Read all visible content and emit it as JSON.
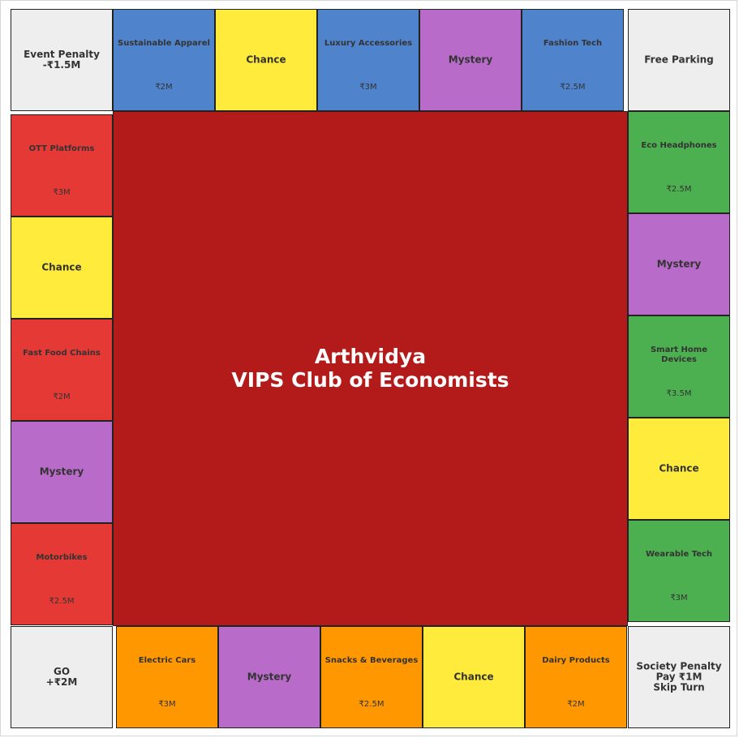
{
  "board": {
    "title_line1": "Arthvidya",
    "title_line2": "VIPS Club of Economists"
  },
  "colors": {
    "blue": "#4f83cc",
    "yellow": "#ffeb3b",
    "purple": "#b86bc8",
    "red": "#e53935",
    "green": "#4caf50",
    "orange": "#ff9800",
    "corner": "#eeeeee",
    "center": "#b31b1b"
  },
  "corners": {
    "top_left": "Event Penalty\n-₹1.5M",
    "top_right": "Free Parking",
    "bottom_left": "GO\n+₹2M",
    "bottom_right": "Society Penalty\nPay ₹1M\nSkip Turn"
  },
  "top_row": [
    {
      "name": "Sustainable Apparel",
      "price": "₹2M",
      "color": "blue"
    },
    {
      "name": "Chance",
      "color": "yellow"
    },
    {
      "name": "Luxury Accessories",
      "price": "₹3M",
      "color": "blue"
    },
    {
      "name": "Mystery",
      "color": "purple"
    },
    {
      "name": "Fashion Tech",
      "price": "₹2.5M",
      "color": "blue"
    }
  ],
  "left_column": [
    {
      "name": "OTT Platforms",
      "price": "₹3M",
      "color": "red"
    },
    {
      "name": "Chance",
      "color": "yellow"
    },
    {
      "name": "Fast Food Chains",
      "price": "₹2M",
      "color": "red"
    },
    {
      "name": "Mystery",
      "color": "purple"
    },
    {
      "name": "Motorbikes",
      "price": "₹2.5M",
      "color": "red"
    }
  ],
  "right_column": [
    {
      "name": "Eco Headphones",
      "price": "₹2.5M",
      "color": "green"
    },
    {
      "name": "Mystery",
      "color": "purple"
    },
    {
      "name": "Smart Home Devices",
      "price": "₹3.5M",
      "color": "green"
    },
    {
      "name": "Chance",
      "color": "yellow"
    },
    {
      "name": "Wearable Tech",
      "price": "₹3M",
      "color": "green"
    }
  ],
  "bottom_row": [
    {
      "name": "Electric Cars",
      "price": "₹3M",
      "color": "orange"
    },
    {
      "name": "Mystery",
      "color": "purple"
    },
    {
      "name": "Snacks & Beverages",
      "price": "₹2.5M",
      "color": "orange"
    },
    {
      "name": "Chance",
      "color": "yellow"
    },
    {
      "name": "Dairy Products",
      "price": "₹2M",
      "color": "orange"
    }
  ]
}
